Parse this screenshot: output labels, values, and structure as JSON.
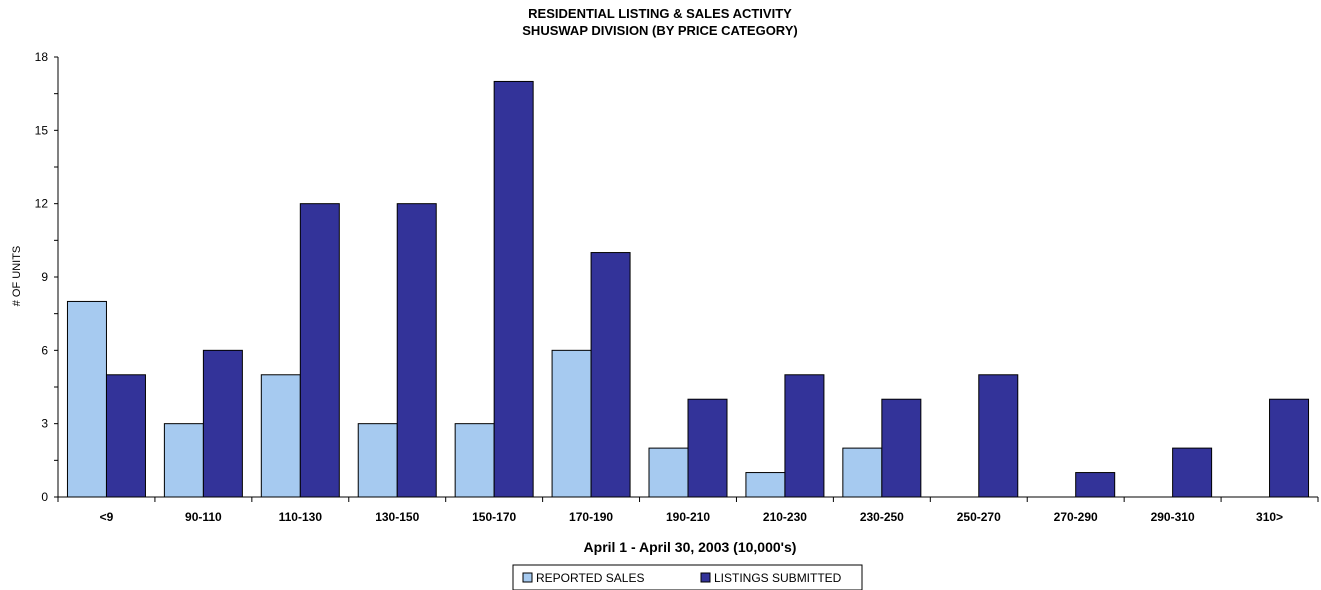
{
  "chart_data": {
    "type": "bar",
    "title": "RESIDENTIAL LISTING & SALES ACTIVITY",
    "subtitle": "SHUSWAP DIVISION (BY PRICE CATEGORY)",
    "xlabel": "April 1 - April 30, 2003 (10,000's)",
    "ylabel": "# OF UNITS",
    "ylim": [
      0,
      18
    ],
    "yticks": [
      "0",
      "3",
      "6",
      "9",
      "12",
      "15",
      "18"
    ],
    "categories": [
      "<9",
      "90-110",
      "110-130",
      "130-150",
      "150-170",
      "170-190",
      "190-210",
      "210-230",
      "230-250",
      "250-270",
      "270-290",
      "290-310",
      "310>"
    ],
    "series": [
      {
        "name": "REPORTED SALES",
        "values": [
          8,
          3,
          5,
          3,
          3,
          6,
          2,
          1,
          2,
          0,
          0,
          0,
          0
        ],
        "color": "#a6caf0"
      },
      {
        "name": "LISTINGS SUBMITTED",
        "values": [
          5,
          6,
          12,
          12,
          17,
          10,
          4,
          5,
          4,
          5,
          1,
          2,
          4
        ],
        "color": "#333399"
      }
    ],
    "grid": false,
    "legend_position": "bottom"
  }
}
